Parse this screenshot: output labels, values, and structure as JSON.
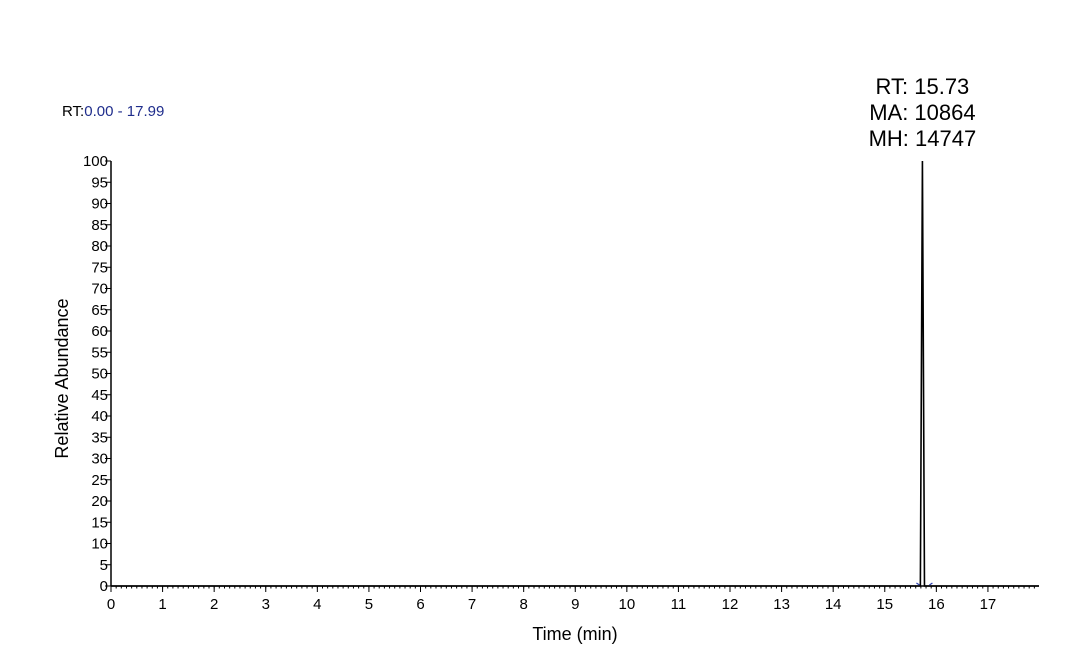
{
  "header": {
    "rt_label": "RT:",
    "rt_range": "0.00 - 17.99"
  },
  "chart_data": {
    "type": "line",
    "xlabel": "Time (min)",
    "ylabel": "Relative Abundance",
    "xlim": [
      0,
      17.99
    ],
    "ylim": [
      0,
      100
    ],
    "x_ticks": [
      0,
      1,
      2,
      3,
      4,
      5,
      6,
      7,
      8,
      9,
      10,
      11,
      12,
      13,
      14,
      15,
      16,
      17
    ],
    "y_ticks": [
      0,
      5,
      10,
      15,
      20,
      25,
      30,
      35,
      40,
      45,
      50,
      55,
      60,
      65,
      70,
      75,
      80,
      85,
      90,
      95,
      100
    ],
    "x_minor_step": 0.1,
    "grid": false,
    "series": [
      {
        "x": [
          0,
          15.69,
          15.71,
          15.73,
          15.75,
          15.77,
          17.99
        ],
        "y": [
          0,
          0,
          50,
          100,
          50,
          0,
          0
        ]
      }
    ],
    "annotations": [
      {
        "x": 15.73,
        "y": 100,
        "lines": [
          "RT: 15.73",
          "MA: 10864",
          "MH: 14747"
        ]
      }
    ],
    "colors": {
      "trace": "#000000",
      "axis": "#000000",
      "rt_range_value": "#1f2d8c",
      "baseline_marker": "#2c3fb0"
    }
  }
}
